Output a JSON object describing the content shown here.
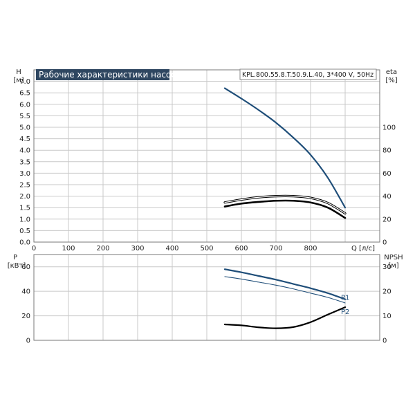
{
  "chart_data": [
    {
      "type": "line",
      "title": "Рабочие характеристики насоса",
      "model": "KPL.800.55.8.T.50.9.L.40, 3*400 V, 50Hz",
      "ylabel": "H",
      "yunit": "[м]",
      "y2label": "eta",
      "y2unit": "[%]",
      "xlabel": "Q",
      "xunit": "[л/с]",
      "xlim": [
        0,
        1000
      ],
      "ylim": [
        0,
        7.5
      ],
      "y2lim": [
        0,
        150
      ],
      "grid": true,
      "x_ticks": [
        "0",
        "100",
        "200",
        "300",
        "400",
        "500",
        "600",
        "700",
        "800"
      ],
      "y_ticks": [
        "0.0",
        "0.5",
        "1.0",
        "1.5",
        "2.0",
        "2.5",
        "3.0",
        "3.5",
        "4.0",
        "4.5",
        "5.0",
        "5.5",
        "6.0",
        "6.5",
        "7.0"
      ],
      "y2_ticks": [
        "0",
        "20",
        "40",
        "60",
        "80",
        "100"
      ],
      "series": [
        {
          "axis": "y",
          "color": "#1f4e79",
          "width": 2.2,
          "x": [
            552,
            600,
            650,
            700,
            750,
            800,
            850,
            900
          ],
          "y": [
            6.7,
            6.25,
            5.75,
            5.2,
            4.55,
            3.8,
            2.8,
            1.5
          ]
        },
        {
          "axis": "y2",
          "color": "#000000",
          "width": 2.6,
          "x": [
            552,
            600,
            650,
            700,
            750,
            800,
            850,
            900
          ],
          "y": [
            31,
            33.5,
            35,
            36,
            36,
            34.5,
            30,
            21
          ]
        },
        {
          "axis": "y2",
          "color": "#000000",
          "width": 1.4,
          "outline": true,
          "x": [
            552,
            600,
            650,
            700,
            750,
            800,
            850,
            900
          ],
          "y": [
            34.5,
            37,
            39,
            40,
            40,
            38.5,
            34,
            25
          ]
        }
      ]
    },
    {
      "type": "line",
      "ylabel": "P",
      "yunit": "[кВт]",
      "y2label": "NPSH",
      "y2unit": "[м]",
      "xlim": [
        0,
        1000
      ],
      "ylim": [
        0,
        70
      ],
      "y2lim": [
        0,
        35
      ],
      "grid": true,
      "y_ticks": [
        "0",
        "20",
        "40",
        "60"
      ],
      "y2_ticks": [
        "0",
        "10",
        "20",
        "30"
      ],
      "series": [
        {
          "name": "P1",
          "axis": "y",
          "color": "#1f4e79",
          "width": 2.2,
          "x": [
            552,
            600,
            650,
            700,
            750,
            800,
            850,
            900
          ],
          "y": [
            58,
            55.5,
            52.5,
            49.5,
            46,
            42.5,
            38.5,
            33.5
          ]
        },
        {
          "name": "P2",
          "axis": "y",
          "color": "#1f4e79",
          "width": 1.1,
          "x": [
            552,
            600,
            650,
            700,
            750,
            800,
            850,
            900
          ],
          "y": [
            52,
            50,
            47.5,
            45,
            42,
            38.5,
            35,
            30.5
          ]
        },
        {
          "axis": "y2",
          "color": "#000000",
          "width": 2.2,
          "x": [
            552,
            600,
            650,
            700,
            750,
            800,
            850,
            900
          ],
          "y": [
            6.5,
            6.1,
            5.3,
            4.9,
            5.4,
            7.4,
            10.5,
            13.5
          ]
        }
      ]
    }
  ]
}
